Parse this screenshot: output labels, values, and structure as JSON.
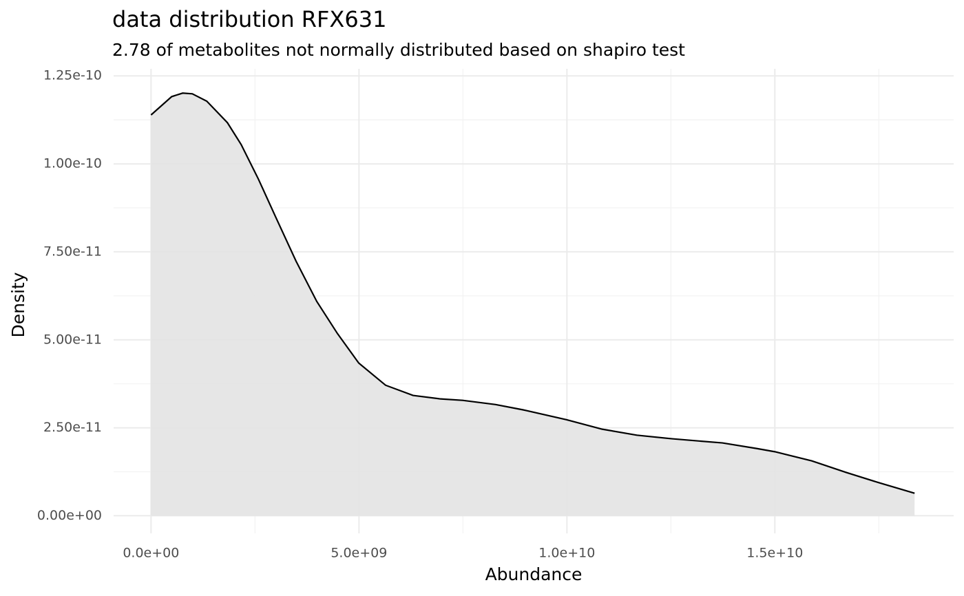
{
  "chart_data": {
    "type": "density",
    "title": "data distribution  RFX631",
    "subtitle": "2.78  of metabolites not normally distributed based on shapiro test",
    "x_label": "Abundance",
    "y_label": "Density",
    "x": [
      0,
      496000000,
      761000000,
      992000000,
      1340000000,
      1836000000,
      2166000000,
      2580000000,
      2993000000,
      3489000000,
      3985000000,
      4481000000,
      4994000000,
      5639000000,
      6300000000,
      6962000000,
      7491000000,
      8285000000,
      8946000000,
      9988000000,
      10850000000,
      11680000000,
      12510000000,
      13740000000,
      14570000000,
      15000000000,
      15890000000,
      16720000000,
      17500000000,
      18360000000
    ],
    "values": [
      1.139e-10,
      1.191e-10,
      1.201e-10,
      1.199e-10,
      1.178e-10,
      1.117e-10,
      1.055e-10,
      9.57e-11,
      8.5e-11,
      7.23e-11,
      6.09e-11,
      5.18e-11,
      4.34e-11,
      3.71e-11,
      3.42e-11,
      3.32e-11,
      3.28e-11,
      3.16e-11,
      3.01e-11,
      2.73e-11,
      2.46e-11,
      2.29e-11,
      2.19e-11,
      2.07e-11,
      1.91e-11,
      1.82e-11,
      1.56e-11,
      1.23e-11,
      9.4e-12,
      6.4e-12
    ],
    "color": "#000000",
    "fill": "#e3e3e3",
    "xlim": [
      -900000000,
      19300000000
    ],
    "ylim": [
      -5e-12,
      1.27e-10
    ],
    "xticks": [
      {
        "value": 0,
        "label": "0.0e+00"
      },
      {
        "value": 5000000000,
        "label": "5.0e+09"
      },
      {
        "value": 10000000000,
        "label": "1.0e+10"
      },
      {
        "value": 15000000000,
        "label": "1.5e+10"
      }
    ],
    "yticks": [
      {
        "value": 0,
        "label": "0.00e+00"
      },
      {
        "value": 2.5e-11,
        "label": "2.50e-11"
      },
      {
        "value": 5e-11,
        "label": "5.00e-11"
      },
      {
        "value": 7.5e-11,
        "label": "7.50e-11"
      },
      {
        "value": 1e-10,
        "label": "1.00e-10"
      },
      {
        "value": 1.25e-10,
        "label": "1.25e-10"
      }
    ],
    "x_minor_ticks": [
      2500000000,
      7500000000,
      12500000000,
      17500000000
    ],
    "y_minor_ticks": [
      1.25e-11,
      3.75e-11,
      6.25e-11,
      8.75e-11,
      1.125e-10
    ],
    "grid": true
  }
}
